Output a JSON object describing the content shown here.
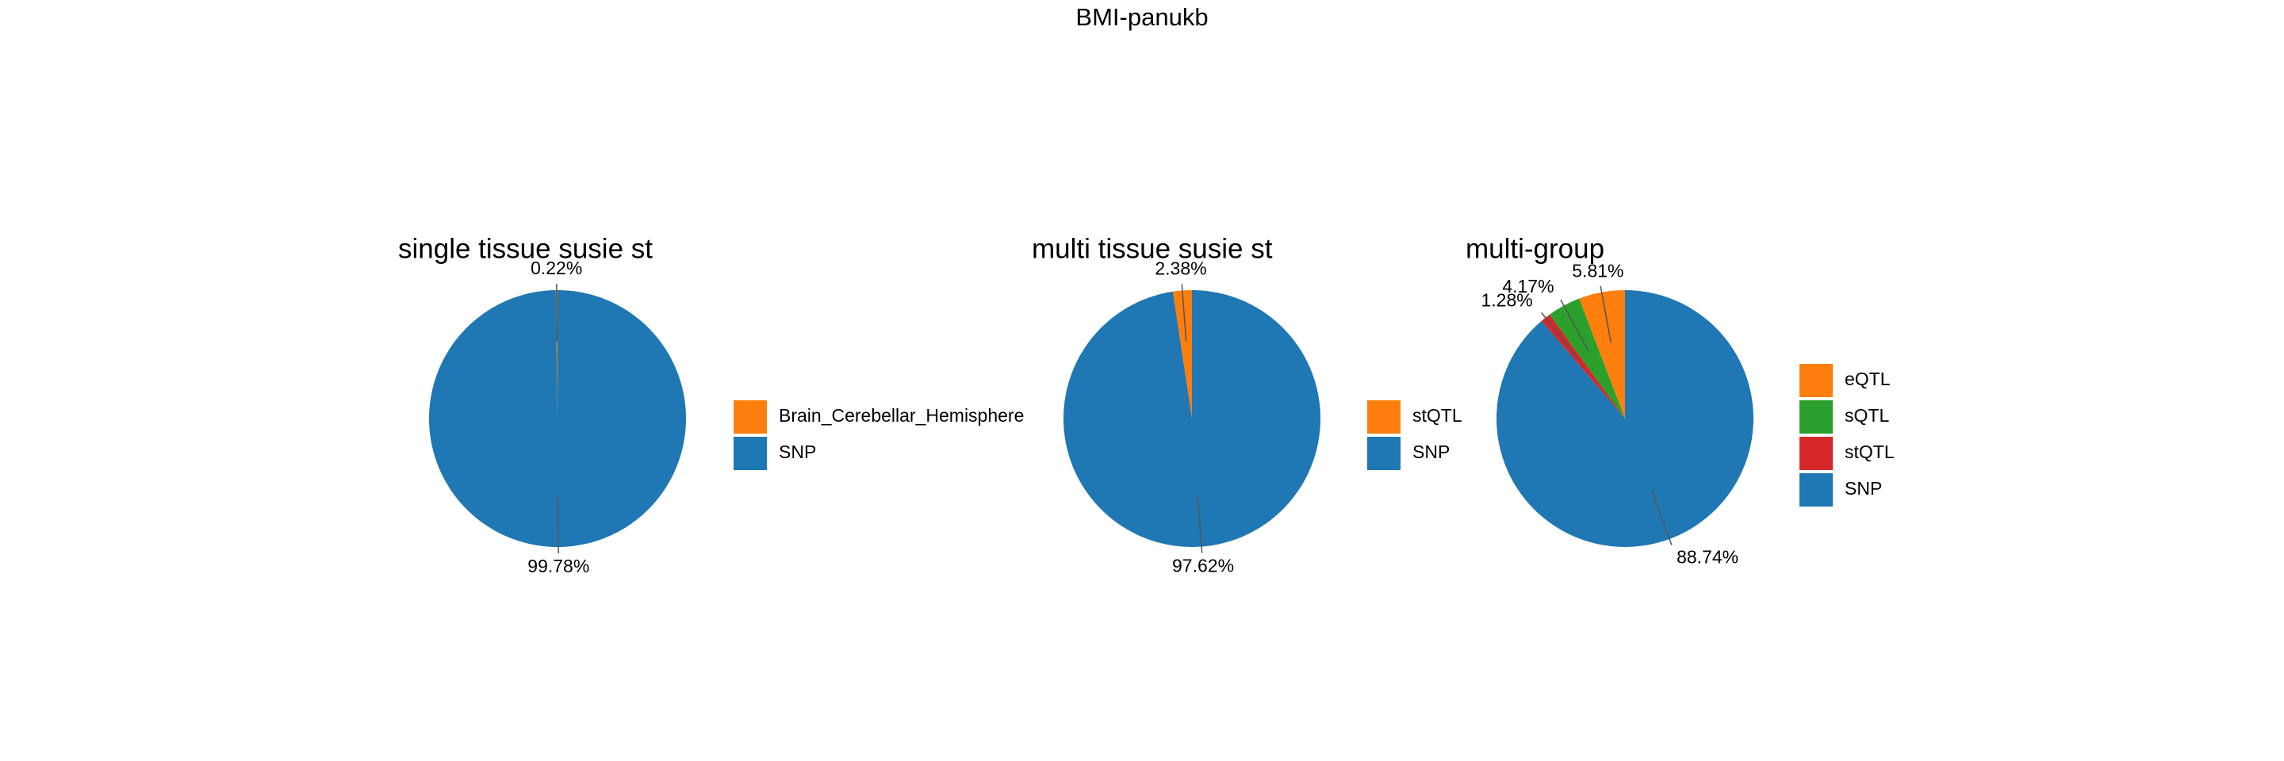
{
  "title": "BMI-panukb",
  "chart_data": [
    {
      "type": "pie",
      "title": "single tissue susie st",
      "categories": [
        "Brain_Cerebellar_Hemisphere",
        "SNP"
      ],
      "values": [
        0.22,
        99.78
      ],
      "value_labels": [
        "0.22%",
        "99.78%"
      ],
      "colors": [
        "#ff7f0e",
        "#1f77b4"
      ],
      "legend": "right"
    },
    {
      "type": "pie",
      "title": "multi tissue susie st",
      "categories": [
        "stQTL",
        "SNP"
      ],
      "values": [
        2.38,
        97.62
      ],
      "value_labels": [
        "2.38%",
        "97.62%"
      ],
      "colors": [
        "#ff7f0e",
        "#1f77b4"
      ],
      "legend": "right"
    },
    {
      "type": "pie",
      "title": "multi-group",
      "categories": [
        "eQTL",
        "sQTL",
        "stQTL",
        "SNP"
      ],
      "values": [
        5.81,
        4.17,
        1.28,
        88.74
      ],
      "value_labels": [
        "5.81%",
        "4.17%",
        "1.28%",
        "88.74%"
      ],
      "colors": [
        "#ff7f0e",
        "#2ca02c",
        "#d62728",
        "#1f77b4"
      ],
      "legend": "right"
    }
  ]
}
